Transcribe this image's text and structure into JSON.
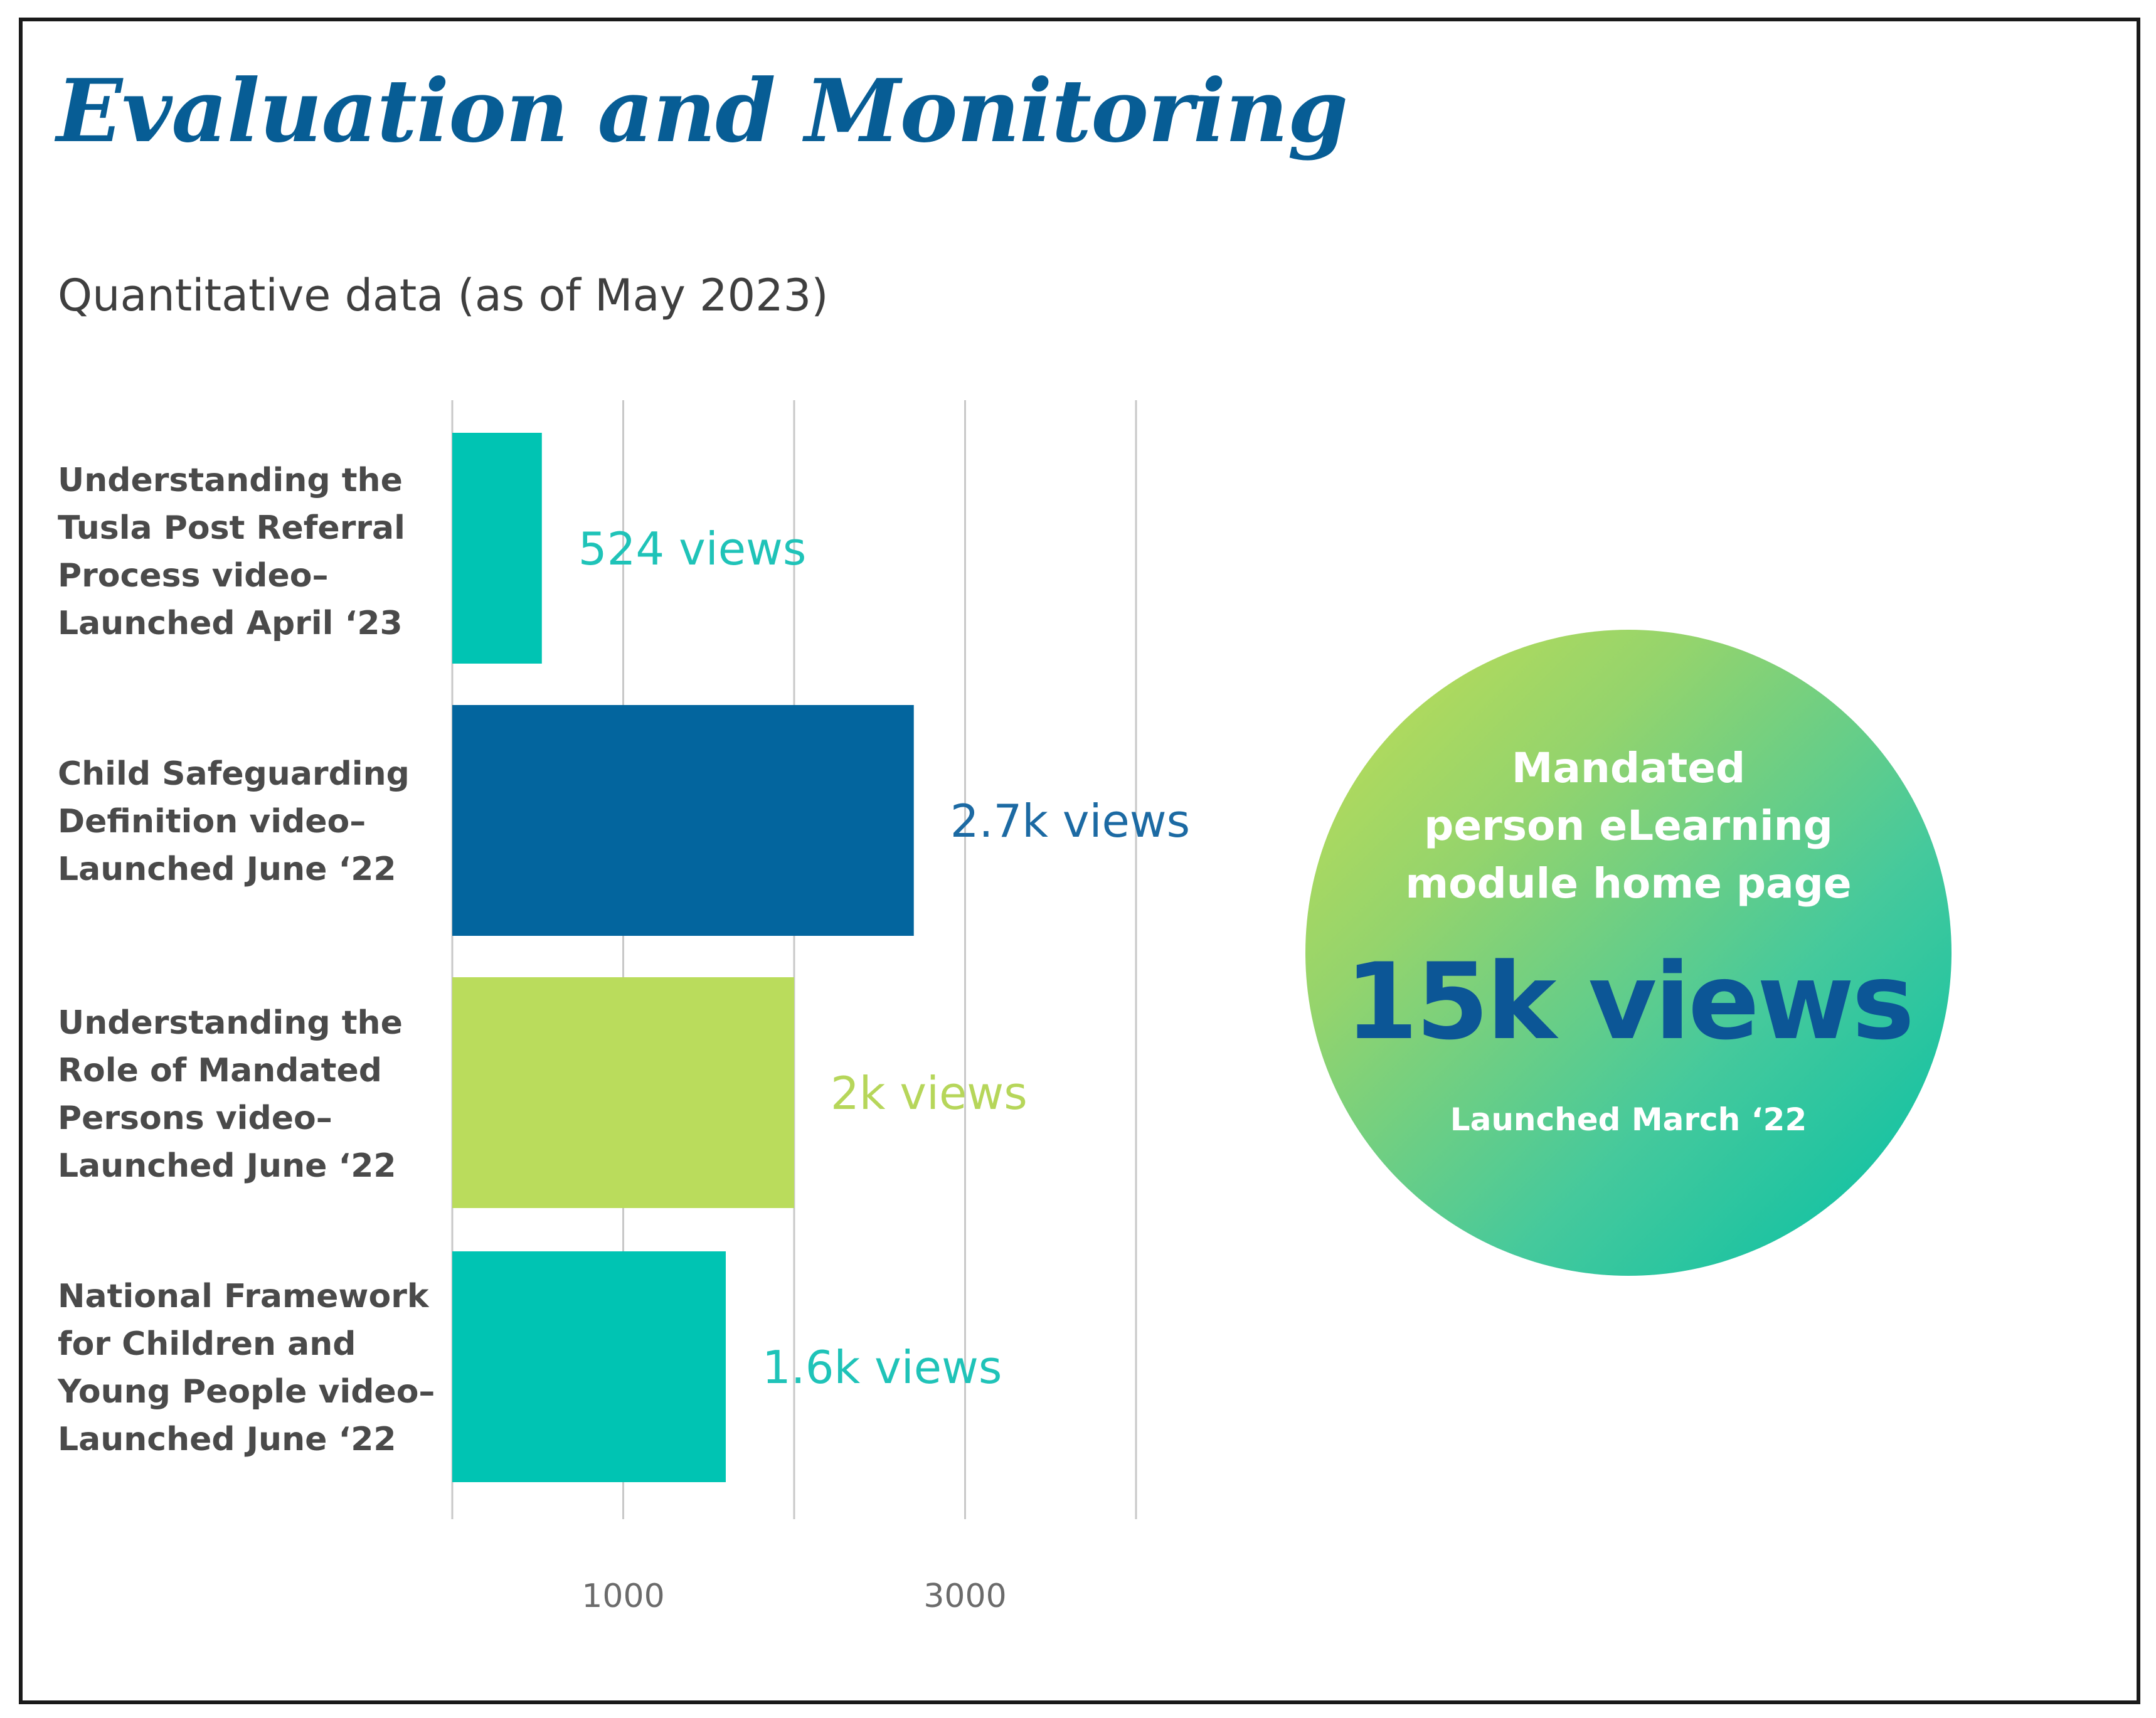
{
  "header": {
    "title": "Evaluation and Monitoring",
    "subtitle": "Quantitative data (as of May 2023)"
  },
  "chart_data": {
    "type": "bar",
    "orientation": "horizontal",
    "title": "Quantitative data (as of May 2023)",
    "xlabel": "",
    "ylabel": "",
    "xlim": [
      0,
      4000
    ],
    "gridlines": [
      1000,
      2000,
      3000,
      4000
    ],
    "tick_labels": [
      "1000",
      "3000"
    ],
    "tick_values": [
      1000,
      3000
    ],
    "grid": true,
    "categories": [
      "Understanding the\nTusla Post Referral\nProcess video–\nLaunched April ‘23",
      "Child Safeguarding\nDefinition video–\nLaunched June ‘22",
      "Understanding the\nRole of Mandated\nPersons video–\nLaunched June ‘22",
      "National Framework\nfor Children and\nYoung People video–\nLaunched June ‘22"
    ],
    "values": [
      524,
      2700,
      2000,
      1600
    ],
    "value_labels": [
      "524 views",
      "2.7k views",
      "2k views",
      "1.6k views"
    ],
    "colors": [
      "#00c4b3",
      "#03659e",
      "#badc5c",
      "#00c4b3"
    ],
    "label_colors": [
      "#1fc3b8",
      "#1c6aa3",
      "#b6d65a",
      "#1fc3b8"
    ]
  },
  "highlight": {
    "caption": "Mandated\nperson eLearning\nmodule home page",
    "value": "15k views",
    "launched": "Launched March ‘22"
  }
}
